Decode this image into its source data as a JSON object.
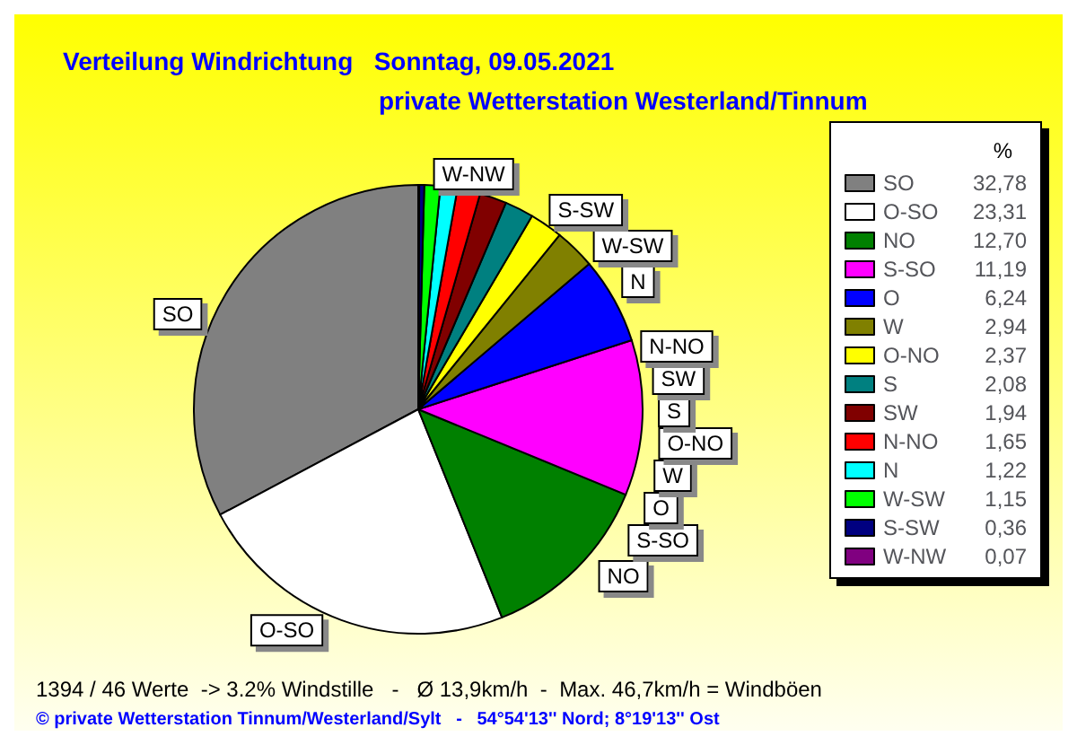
{
  "chart_data": {
    "type": "pie",
    "title": "Verteilung Windrichtung   Sonntag, 09.05.2021",
    "subtitle": "private Wetterstation Westerland/Tinnum",
    "legend_title": "%",
    "legend": "right",
    "categories": [
      "SO",
      "O-SO",
      "NO",
      "S-SO",
      "O",
      "W",
      "O-NO",
      "S",
      "SW",
      "N-NO",
      "N",
      "W-SW",
      "S-SW",
      "W-NW"
    ],
    "values": [
      32.78,
      23.31,
      12.7,
      11.19,
      6.24,
      2.94,
      2.37,
      2.08,
      1.94,
      1.65,
      1.22,
      1.15,
      0.36,
      0.07
    ],
    "value_labels": [
      "32,78",
      "23,31",
      "12,70",
      "11,19",
      "6,24",
      "2,94",
      "2,37",
      "2,08",
      "1,94",
      "1,65",
      "1,22",
      "1,15",
      "0,36",
      "0,07"
    ],
    "colors": [
      "#808080",
      "#ffffff",
      "#008000",
      "#ff00ff",
      "#0000ff",
      "#808000",
      "#ffff00",
      "#008080",
      "#800000",
      "#ff0000",
      "#00ffff",
      "#00ff00",
      "#000080",
      "#800080"
    ],
    "annotations": [
      "1394 / 46 Werte  -> 3.2% Windstille   -   Ø 13,9km/h  -  Max. 46,7km/h = Windböen",
      "© private Wetterstation Tinnum/Westerland/Sylt   -   54°54'13'' Nord; 8°19'13'' Ost"
    ]
  }
}
